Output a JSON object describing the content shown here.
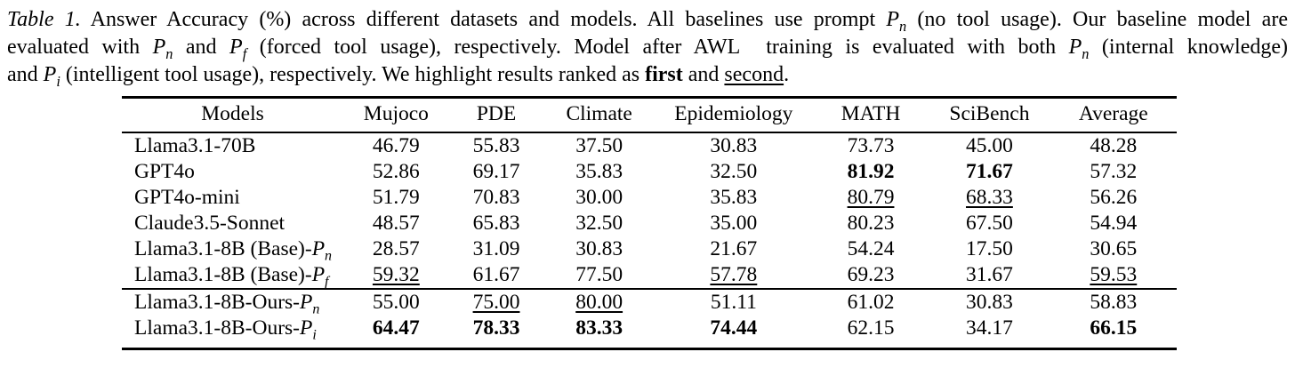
{
  "colors": {
    "text": "#000000",
    "background": "#ffffff",
    "rule": "#000000"
  },
  "caption": {
    "lines": [
      [
        {
          "t": "Table 1.",
          "i": true
        },
        {
          "t": " Answer Accuracy (%) across different datasets and models. All baselines use prompt "
        },
        {
          "math": {
            "base": "P",
            "sub": "n"
          }
        },
        {
          "t": " (no tool usage). Our baseline model are"
        }
      ],
      [
        {
          "t": "evaluated with "
        },
        {
          "math": {
            "base": "P",
            "sub": "n"
          }
        },
        {
          "t": " and "
        },
        {
          "math": {
            "base": "P",
            "sub": "f"
          }
        },
        {
          "t": " (forced tool usage), respectively. Model after AWL  training is evaluated with both "
        },
        {
          "math": {
            "base": "P",
            "sub": "n"
          }
        },
        {
          "t": " (internal knowledge)"
        }
      ],
      [
        {
          "t": "and "
        },
        {
          "math": {
            "base": "P",
            "sub": "i"
          }
        },
        {
          "t": " (intelligent tool usage), respectively. We highlight results ranked as "
        },
        {
          "t": "first",
          "b": true
        },
        {
          "t": " and "
        },
        {
          "t": "second",
          "u": true
        },
        {
          "t": "."
        }
      ]
    ]
  },
  "table": {
    "columns": [
      "Models",
      "Mujoco",
      "PDE",
      "Climate",
      "Epidemiology",
      "MATH",
      "SciBench",
      "Average"
    ],
    "rank_styles": {
      "first": "bold",
      "second": "underline"
    },
    "groups": [
      {
        "name": "baselines",
        "rows": [
          {
            "model": [
              {
                "t": "Llama3.1-70B"
              }
            ],
            "cells": [
              {
                "v": "46.79"
              },
              {
                "v": "55.83"
              },
              {
                "v": "37.50"
              },
              {
                "v": "30.83"
              },
              {
                "v": "73.73"
              },
              {
                "v": "45.00"
              },
              {
                "v": "48.28"
              }
            ]
          },
          {
            "model": [
              {
                "t": "GPT4o"
              }
            ],
            "cells": [
              {
                "v": "52.86"
              },
              {
                "v": "69.17"
              },
              {
                "v": "35.83"
              },
              {
                "v": "32.50"
              },
              {
                "v": "81.92",
                "s": "first"
              },
              {
                "v": "71.67",
                "s": "first"
              },
              {
                "v": "57.32"
              }
            ]
          },
          {
            "model": [
              {
                "t": "GPT4o-mini"
              }
            ],
            "cells": [
              {
                "v": "51.79"
              },
              {
                "v": "70.83"
              },
              {
                "v": "30.00"
              },
              {
                "v": "35.83"
              },
              {
                "v": "80.79",
                "s": "second"
              },
              {
                "v": "68.33",
                "s": "second"
              },
              {
                "v": "56.26"
              }
            ]
          },
          {
            "model": [
              {
                "t": "Claude3.5-Sonnet"
              }
            ],
            "cells": [
              {
                "v": "48.57"
              },
              {
                "v": "65.83"
              },
              {
                "v": "32.50"
              },
              {
                "v": "35.00"
              },
              {
                "v": "80.23"
              },
              {
                "v": "67.50"
              },
              {
                "v": "54.94"
              }
            ]
          },
          {
            "model": [
              {
                "t": "Llama3.1-8B (Base)-"
              },
              {
                "math": {
                  "base": "P",
                  "sub": "n"
                }
              }
            ],
            "cells": [
              {
                "v": "28.57"
              },
              {
                "v": "31.09"
              },
              {
                "v": "30.83"
              },
              {
                "v": "21.67"
              },
              {
                "v": "54.24"
              },
              {
                "v": "17.50"
              },
              {
                "v": "30.65"
              }
            ]
          },
          {
            "model": [
              {
                "t": "Llama3.1-8B (Base)-"
              },
              {
                "math": {
                  "base": "P",
                  "sub": "f"
                }
              }
            ],
            "cells": [
              {
                "v": "59.32",
                "s": "second"
              },
              {
                "v": "61.67"
              },
              {
                "v": "77.50"
              },
              {
                "v": "57.78",
                "s": "second"
              },
              {
                "v": "69.23"
              },
              {
                "v": "31.67"
              },
              {
                "v": "59.53",
                "s": "second"
              }
            ]
          }
        ]
      },
      {
        "name": "ours",
        "rows": [
          {
            "model": [
              {
                "t": "Llama3.1-8B-Ours-"
              },
              {
                "math": {
                  "base": "P",
                  "sub": "n"
                }
              }
            ],
            "cells": [
              {
                "v": "55.00"
              },
              {
                "v": "75.00",
                "s": "second"
              },
              {
                "v": "80.00",
                "s": "second"
              },
              {
                "v": "51.11"
              },
              {
                "v": "61.02"
              },
              {
                "v": "30.83"
              },
              {
                "v": "58.83"
              }
            ]
          },
          {
            "model": [
              {
                "t": "Llama3.1-8B-Ours-"
              },
              {
                "math": {
                  "base": "P",
                  "sub": "i"
                }
              }
            ],
            "cells": [
              {
                "v": "64.47",
                "s": "first"
              },
              {
                "v": "78.33",
                "s": "first"
              },
              {
                "v": "83.33",
                "s": "first"
              },
              {
                "v": "74.44",
                "s": "first"
              },
              {
                "v": "62.15"
              },
              {
                "v": "34.17"
              },
              {
                "v": "66.15",
                "s": "first"
              }
            ]
          }
        ]
      }
    ]
  }
}
